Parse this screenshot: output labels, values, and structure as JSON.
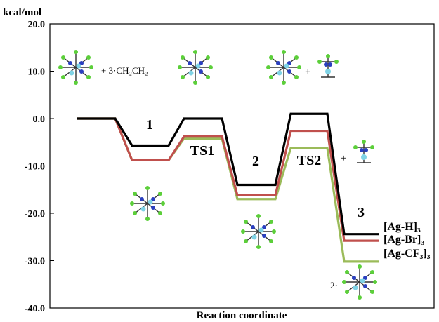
{
  "chart_data": {
    "type": "line",
    "title": "",
    "ylabel": "kcal/mol",
    "xlabel": "Reaction coordinate",
    "ylim": [
      -40,
      20
    ],
    "yticks": [
      "20.0",
      "10.0",
      "0.0",
      "-10.0",
      "-20.0",
      "-30.0",
      "-40.0"
    ],
    "ytick_values": [
      20,
      10,
      0,
      -10,
      -20,
      -30,
      -40
    ],
    "grid": false,
    "stage_labels": [
      "1",
      "TS1",
      "2",
      "TS2",
      "3"
    ],
    "series": [
      {
        "name": "[Ag-H]₃",
        "color": "#000000",
        "x": [
          0,
          1,
          2,
          3,
          4,
          5,
          6
        ],
        "values": [
          0.0,
          -5.7,
          0.0,
          -14.0,
          1.0,
          -24.4,
          -24.4
        ]
      },
      {
        "name": "[Ag-Br]₃",
        "color": "#c0504d",
        "x": [
          0,
          1,
          2,
          3,
          4,
          5,
          6
        ],
        "values": [
          0.0,
          -8.8,
          -3.8,
          -16.2,
          -2.6,
          -25.8,
          -25.8
        ]
      },
      {
        "name": "[Ag-CF₃]₃",
        "color": "#9bbb59",
        "x": [
          0,
          1,
          2,
          3,
          4,
          5,
          6
        ],
        "values": [
          0.0,
          -8.8,
          -4.2,
          -17.0,
          -6.2,
          -30.2,
          -30.2
        ]
      }
    ],
    "annotations": {
      "reactant": "+ 3·CH₂CH₂",
      "plus_1": "+",
      "plus_2": "+",
      "coef_product": "2·"
    }
  }
}
